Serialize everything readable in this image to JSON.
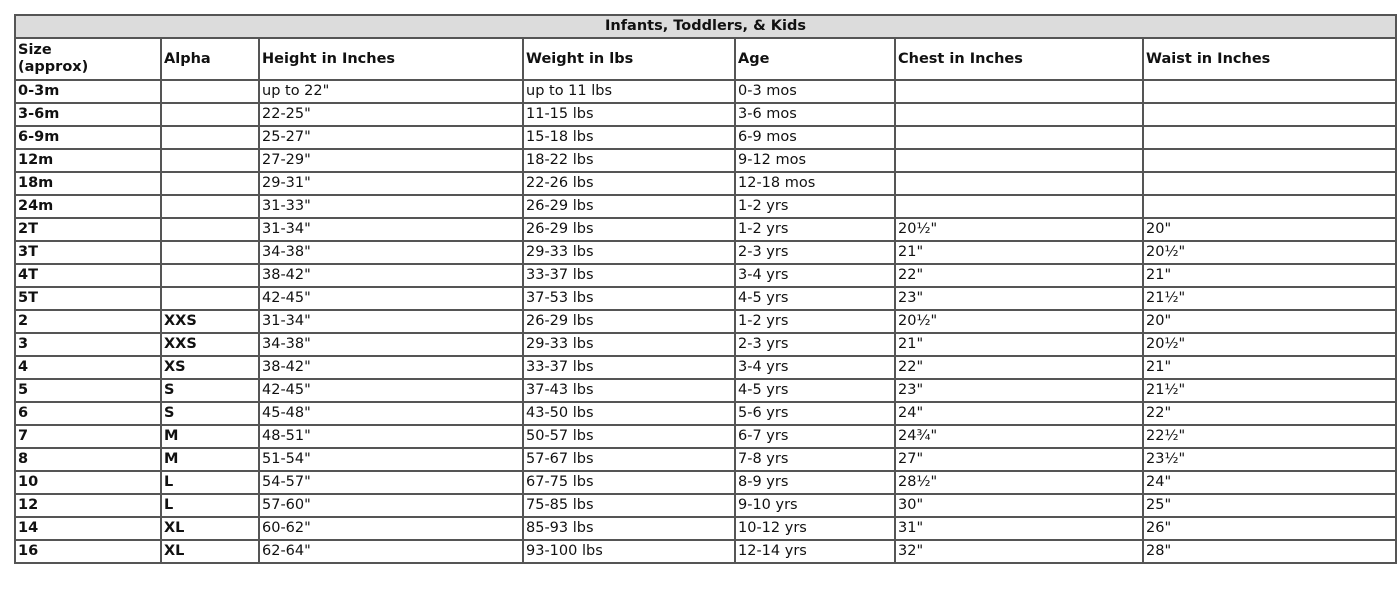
{
  "table": {
    "title": "Infants, Toddlers, & Kids",
    "columns": [
      "Size\n(approx)",
      "Alpha",
      "Height in Inches",
      "Weight in lbs",
      "Age",
      "Chest in Inches",
      "Waist in Inches"
    ],
    "rows": [
      [
        "0-3m",
        "",
        "up to 22\"",
        "up to 11 lbs",
        "0-3 mos",
        "",
        ""
      ],
      [
        "3-6m",
        "",
        "22-25\"",
        "11-15 lbs",
        "3-6 mos",
        "",
        ""
      ],
      [
        "6-9m",
        "",
        "25-27\"",
        "15-18 lbs",
        "6-9 mos",
        "",
        ""
      ],
      [
        "12m",
        "",
        "27-29\"",
        "18-22 lbs",
        "9-12 mos",
        "",
        ""
      ],
      [
        "18m",
        "",
        "29-31\"",
        "22-26 lbs",
        "12-18 mos",
        "",
        ""
      ],
      [
        "24m",
        "",
        "31-33\"",
        "26-29 lbs",
        "1-2 yrs",
        "",
        ""
      ],
      [
        "2T",
        "",
        "31-34\"",
        "26-29 lbs",
        "1-2 yrs",
        "20½\"",
        "20\""
      ],
      [
        "3T",
        "",
        "34-38\"",
        "29-33 lbs",
        "2-3 yrs",
        "21\"",
        "20½\""
      ],
      [
        "4T",
        "",
        "38-42\"",
        "33-37 lbs",
        "3-4 yrs",
        "22\"",
        "21\""
      ],
      [
        "5T",
        "",
        "42-45\"",
        "37-53 lbs",
        "4-5 yrs",
        "23\"",
        "21½\""
      ],
      [
        "2",
        "XXS",
        "31-34\"",
        "26-29 lbs",
        "1-2 yrs",
        "20½\"",
        "20\""
      ],
      [
        "3",
        "XXS",
        "34-38\"",
        "29-33 lbs",
        "2-3 yrs",
        "21\"",
        "20½\""
      ],
      [
        "4",
        "XS",
        "38-42\"",
        "33-37 lbs",
        "3-4 yrs",
        "22\"",
        "21\""
      ],
      [
        "5",
        "S",
        "42-45\"",
        "37-43 lbs",
        "4-5 yrs",
        "23\"",
        "21½\""
      ],
      [
        "6",
        "S",
        "45-48\"",
        "43-50 lbs",
        "5-6 yrs",
        "24\"",
        "22\""
      ],
      [
        "7",
        "M",
        "48-51\"",
        "50-57 lbs",
        "6-7 yrs",
        "24¾\"",
        "22½\""
      ],
      [
        "8",
        "M",
        "51-54\"",
        "57-67 lbs",
        "7-8 yrs",
        "27\"",
        "23½\""
      ],
      [
        "10",
        "L",
        "54-57\"",
        "67-75 lbs",
        "8-9 yrs",
        "28½\"",
        "24\""
      ],
      [
        "12",
        "L",
        "57-60\"",
        "75-85 lbs",
        "9-10 yrs",
        "30\"",
        "25\""
      ],
      [
        "14",
        "XL",
        "60-62\"",
        "85-93 lbs",
        "10-12 yrs",
        "31\"",
        "26\""
      ],
      [
        "16",
        "XL",
        "62-64\"",
        "93-100 lbs",
        "12-14 yrs",
        "32\"",
        "28\""
      ]
    ]
  }
}
